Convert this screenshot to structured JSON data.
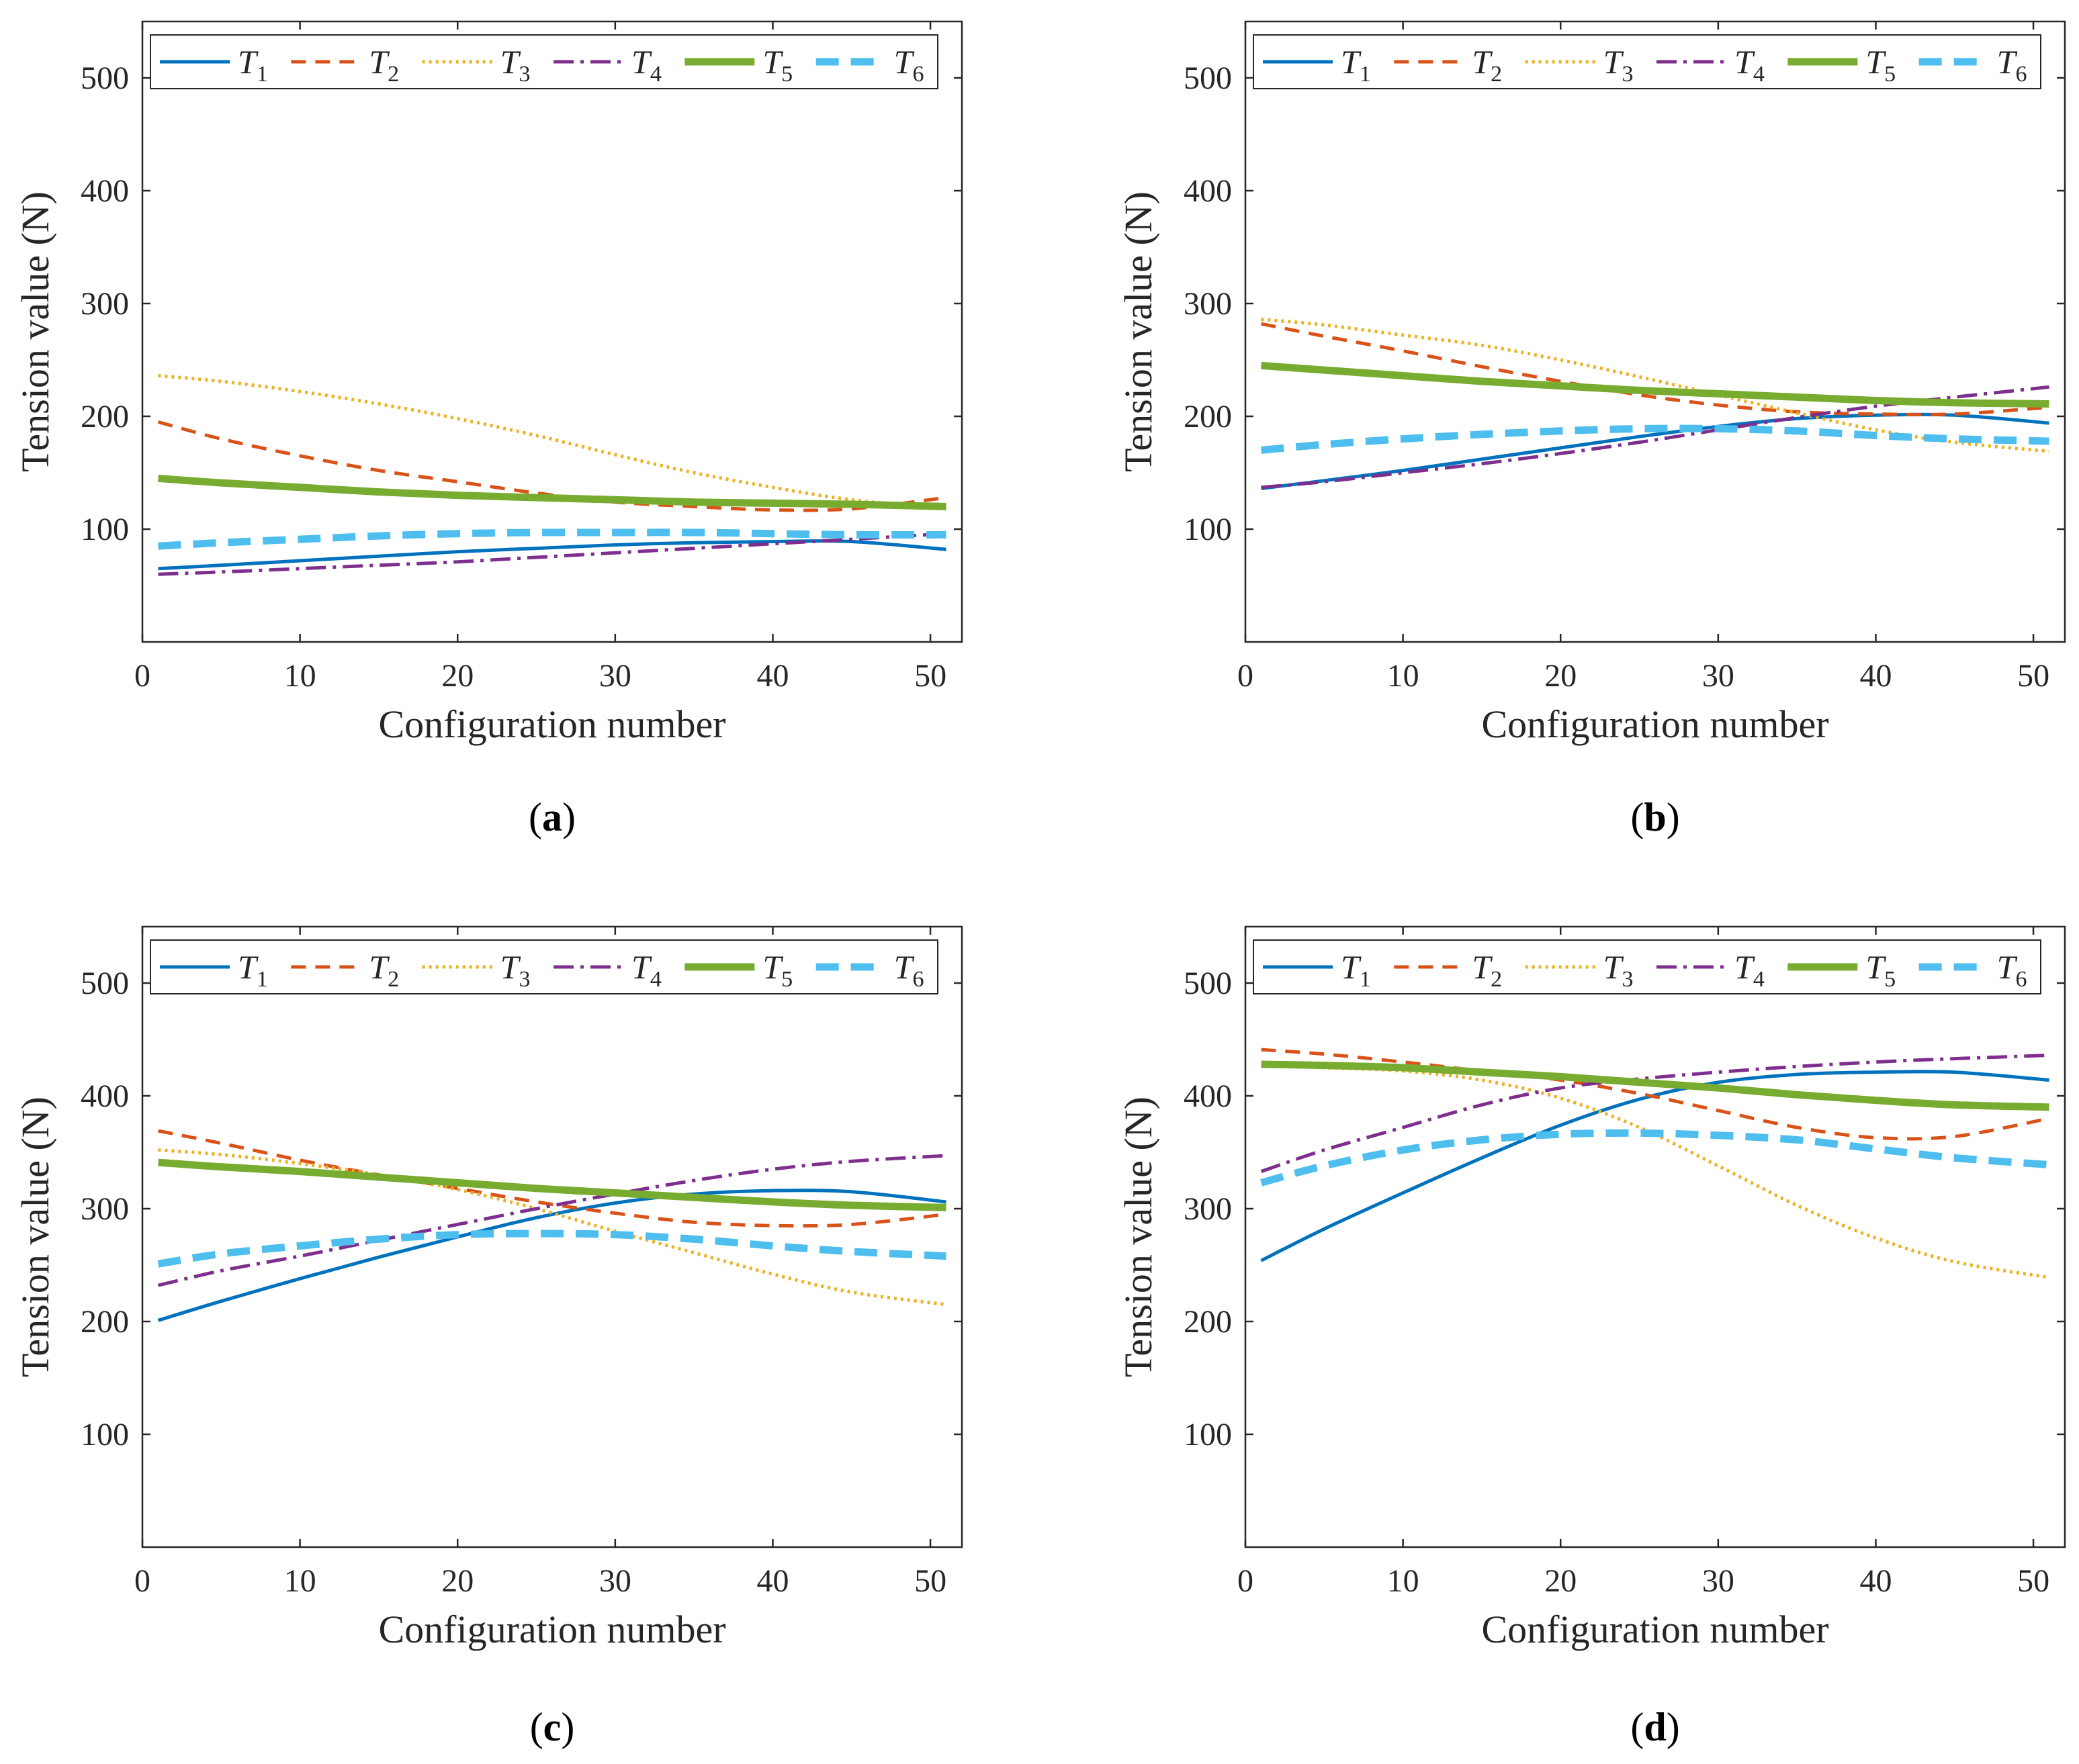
{
  "chart_data": [
    {
      "type": "line",
      "panel_label": "a",
      "xlabel": "Configuration number",
      "ylabel": "Tension value (N)",
      "xlim": [
        0,
        52
      ],
      "ylim": [
        0,
        550
      ],
      "xticks": [
        0,
        10,
        20,
        30,
        40,
        50
      ],
      "yticks": [
        100,
        200,
        300,
        400,
        500
      ],
      "legend_position": "top",
      "x": [
        1,
        5,
        10,
        15,
        20,
        25,
        30,
        35,
        40,
        45,
        51
      ],
      "series": [
        {
          "name": "T1",
          "values": [
            65,
            68,
            72,
            76,
            80,
            83,
            86,
            88,
            89,
            89,
            82
          ]
        },
        {
          "name": "T2",
          "values": [
            195,
            180,
            165,
            152,
            142,
            132,
            124,
            120,
            117,
            118,
            128
          ]
        },
        {
          "name": "T3",
          "values": [
            236,
            231,
            222,
            211,
            198,
            183,
            166,
            150,
            137,
            126,
            118
          ]
        },
        {
          "name": "T4",
          "values": [
            60,
            62,
            65,
            68,
            71,
            75,
            79,
            83,
            87,
            91,
            96
          ]
        },
        {
          "name": "T5",
          "values": [
            145,
            141,
            137,
            133,
            130,
            128,
            126,
            124,
            123,
            122,
            120
          ]
        },
        {
          "name": "T6",
          "values": [
            85,
            88,
            91,
            94,
            96,
            97,
            97,
            97,
            96,
            95,
            95
          ]
        }
      ]
    },
    {
      "type": "line",
      "panel_label": "b",
      "xlabel": "Configuration number",
      "ylabel": "Tension value (N)",
      "xlim": [
        0,
        52
      ],
      "ylim": [
        0,
        550
      ],
      "xticks": [
        0,
        10,
        20,
        30,
        40,
        50
      ],
      "yticks": [
        100,
        200,
        300,
        400,
        500
      ],
      "legend_position": "top",
      "x": [
        1,
        5,
        10,
        15,
        20,
        25,
        30,
        35,
        40,
        45,
        51
      ],
      "series": [
        {
          "name": "T1",
          "values": [
            136,
            143,
            152,
            162,
            172,
            182,
            191,
            198,
            201,
            201,
            194
          ]
        },
        {
          "name": "T2",
          "values": [
            282,
            271,
            258,
            244,
            231,
            219,
            210,
            204,
            202,
            202,
            208
          ]
        },
        {
          "name": "T3",
          "values": [
            286,
            281,
            272,
            263,
            250,
            235,
            219,
            203,
            188,
            177,
            169
          ]
        },
        {
          "name": "T4",
          "values": [
            137,
            142,
            150,
            158,
            167,
            177,
            188,
            199,
            209,
            217,
            226
          ]
        },
        {
          "name": "T5",
          "values": [
            245,
            241,
            236,
            231,
            227,
            223,
            220,
            217,
            214,
            212,
            211
          ]
        },
        {
          "name": "T6",
          "values": [
            170,
            175,
            180,
            184,
            187,
            189,
            189,
            187,
            183,
            180,
            178
          ]
        }
      ]
    },
    {
      "type": "line",
      "panel_label": "c",
      "xlabel": "Configuration number",
      "ylabel": "Tension value (N)",
      "xlim": [
        0,
        52
      ],
      "ylim": [
        0,
        550
      ],
      "xticks": [
        0,
        10,
        20,
        30,
        40,
        50
      ],
      "yticks": [
        100,
        200,
        300,
        400,
        500
      ],
      "legend_position": "top",
      "x": [
        1,
        5,
        10,
        15,
        20,
        25,
        30,
        35,
        40,
        45,
        51
      ],
      "series": [
        {
          "name": "T1",
          "values": [
            201,
            218,
            238,
            257,
            275,
            292,
            305,
            313,
            316,
            315,
            306
          ]
        },
        {
          "name": "T2",
          "values": [
            369,
            358,
            343,
            330,
            318,
            306,
            296,
            288,
            285,
            286,
            295
          ]
        },
        {
          "name": "T3",
          "values": [
            352,
            348,
            340,
            330,
            317,
            300,
            280,
            261,
            242,
            226,
            215
          ]
        },
        {
          "name": "T4",
          "values": [
            232,
            245,
            258,
            272,
            286,
            300,
            313,
            325,
            335,
            342,
            347
          ]
        },
        {
          "name": "T5",
          "values": [
            341,
            337,
            333,
            328,
            323,
            318,
            314,
            310,
            306,
            303,
            301
          ]
        },
        {
          "name": "T6",
          "values": [
            251,
            260,
            267,
            273,
            277,
            278,
            277,
            273,
            267,
            262,
            258
          ]
        }
      ]
    },
    {
      "type": "line",
      "panel_label": "d",
      "xlabel": "Configuration number",
      "ylabel": "Tension value (N)",
      "xlim": [
        0,
        52
      ],
      "ylim": [
        0,
        550
      ],
      "xticks": [
        0,
        10,
        20,
        30,
        40,
        50
      ],
      "yticks": [
        100,
        200,
        300,
        400,
        500
      ],
      "legend_position": "top",
      "x": [
        1,
        5,
        10,
        15,
        20,
        25,
        30,
        35,
        40,
        45,
        51
      ],
      "series": [
        {
          "name": "T1",
          "values": [
            254,
            282,
            314,
            345,
            374,
            397,
            412,
            419,
            421,
            421,
            414
          ]
        },
        {
          "name": "T2",
          "values": [
            441,
            437,
            430,
            422,
            414,
            402,
            387,
            372,
            363,
            364,
            380
          ]
        },
        {
          "name": "T3",
          "values": [
            427,
            425,
            422,
            414,
            398,
            372,
            338,
            303,
            274,
            253,
            239
          ]
        },
        {
          "name": "T4",
          "values": [
            333,
            352,
            372,
            392,
            407,
            415,
            421,
            426,
            430,
            433,
            436
          ]
        },
        {
          "name": "T5",
          "values": [
            428,
            427,
            425,
            421,
            417,
            412,
            407,
            401,
            396,
            392,
            390
          ]
        },
        {
          "name": "T6",
          "values": [
            323,
            338,
            352,
            361,
            366,
            367,
            365,
            361,
            353,
            345,
            339
          ]
        }
      ]
    }
  ],
  "legend": {
    "entries": [
      {
        "symbol": "T",
        "subscript": "1",
        "color": "#0072BD",
        "style": "solid"
      },
      {
        "symbol": "T",
        "subscript": "2",
        "color": "#D95319",
        "style": "dashed"
      },
      {
        "symbol": "T",
        "subscript": "3",
        "color": "#EDB120",
        "style": "dotted"
      },
      {
        "symbol": "T",
        "subscript": "4",
        "color": "#7E2F8E",
        "style": "dashdot"
      },
      {
        "symbol": "T",
        "subscript": "5",
        "color": "#77AC30",
        "style": "thick-solid"
      },
      {
        "symbol": "T",
        "subscript": "6",
        "color": "#4DBEEE",
        "style": "thick-dashed"
      }
    ]
  },
  "panel_captions": [
    {
      "open": "(",
      "letter": "a",
      "close": ")"
    },
    {
      "open": "(",
      "letter": "b",
      "close": ")"
    },
    {
      "open": "(",
      "letter": "c",
      "close": ")"
    },
    {
      "open": "(",
      "letter": "d",
      "close": ")"
    }
  ]
}
